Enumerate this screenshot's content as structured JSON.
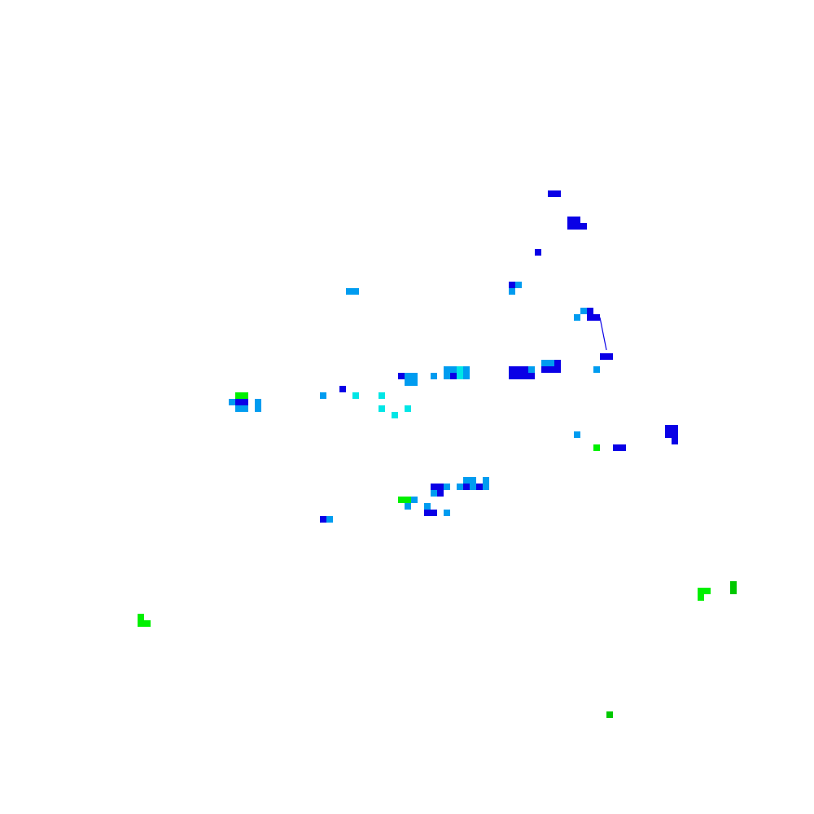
{
  "chart_data": {
    "type": "heatmap",
    "grid_on": false,
    "legend": "none",
    "colors": {
      "D": "#0a00e6",
      "L": "#009cf0",
      "C": "#00e6e6",
      "G": "#00f000",
      "g": "#00c800"
    },
    "cells": [
      [
        84,
        29,
        "D"
      ],
      [
        85,
        29,
        "D"
      ],
      [
        87,
        33,
        "D"
      ],
      [
        88,
        33,
        "D"
      ],
      [
        87,
        34,
        "D"
      ],
      [
        88,
        34,
        "D"
      ],
      [
        89,
        34,
        "D"
      ],
      [
        82,
        38,
        "D"
      ],
      [
        53,
        44,
        "L"
      ],
      [
        54,
        44,
        "L"
      ],
      [
        78,
        43,
        "D"
      ],
      [
        79,
        43,
        "L"
      ],
      [
        78,
        44,
        "L"
      ],
      [
        89,
        47,
        "L"
      ],
      [
        90,
        47,
        "D"
      ],
      [
        88,
        48,
        "L"
      ],
      [
        90,
        48,
        "D"
      ],
      [
        91,
        48,
        "D"
      ],
      [
        92,
        54,
        "D"
      ],
      [
        93,
        54,
        "D"
      ],
      [
        91,
        56,
        "L"
      ],
      [
        61,
        57,
        "D"
      ],
      [
        62,
        57,
        "L"
      ],
      [
        63,
        57,
        "L"
      ],
      [
        62,
        58,
        "L"
      ],
      [
        63,
        58,
        "L"
      ],
      [
        66,
        57,
        "L"
      ],
      [
        68,
        56,
        "L"
      ],
      [
        69,
        56,
        "L"
      ],
      [
        70,
        56,
        "C"
      ],
      [
        71,
        56,
        "L"
      ],
      [
        68,
        57,
        "L"
      ],
      [
        69,
        57,
        "D"
      ],
      [
        70,
        57,
        "C"
      ],
      [
        71,
        57,
        "L"
      ],
      [
        78,
        56,
        "D"
      ],
      [
        79,
        56,
        "D"
      ],
      [
        80,
        56,
        "D"
      ],
      [
        81,
        56,
        "L"
      ],
      [
        78,
        57,
        "D"
      ],
      [
        79,
        57,
        "D"
      ],
      [
        80,
        57,
        "D"
      ],
      [
        81,
        57,
        "D"
      ],
      [
        83,
        55,
        "L"
      ],
      [
        84,
        55,
        "L"
      ],
      [
        85,
        55,
        "D"
      ],
      [
        83,
        56,
        "D"
      ],
      [
        84,
        56,
        "D"
      ],
      [
        85,
        56,
        "D"
      ],
      [
        52,
        59,
        "D"
      ],
      [
        49,
        60,
        "L"
      ],
      [
        54,
        60,
        "C"
      ],
      [
        58,
        60,
        "C"
      ],
      [
        36,
        60,
        "G"
      ],
      [
        37,
        60,
        "G"
      ],
      [
        35,
        61,
        "L"
      ],
      [
        36,
        61,
        "D"
      ],
      [
        37,
        61,
        "D"
      ],
      [
        36,
        62,
        "L"
      ],
      [
        37,
        62,
        "L"
      ],
      [
        39,
        61,
        "L"
      ],
      [
        39,
        62,
        "L"
      ],
      [
        58,
        62,
        "C"
      ],
      [
        62,
        62,
        "C"
      ],
      [
        60,
        63,
        "C"
      ],
      [
        102,
        65,
        "D"
      ],
      [
        103,
        65,
        "D"
      ],
      [
        102,
        66,
        "D"
      ],
      [
        103,
        66,
        "D"
      ],
      [
        103,
        67,
        "D"
      ],
      [
        88,
        66,
        "L"
      ],
      [
        91,
        68,
        "G"
      ],
      [
        94,
        68,
        "D"
      ],
      [
        95,
        68,
        "D"
      ],
      [
        71,
        73,
        "L"
      ],
      [
        72,
        73,
        "L"
      ],
      [
        74,
        73,
        "L"
      ],
      [
        66,
        74,
        "D"
      ],
      [
        67,
        74,
        "D"
      ],
      [
        68,
        74,
        "L"
      ],
      [
        70,
        74,
        "L"
      ],
      [
        71,
        74,
        "D"
      ],
      [
        72,
        74,
        "L"
      ],
      [
        73,
        74,
        "D"
      ],
      [
        74,
        74,
        "L"
      ],
      [
        66,
        75,
        "L"
      ],
      [
        67,
        75,
        "D"
      ],
      [
        61,
        76,
        "G"
      ],
      [
        62,
        76,
        "G"
      ],
      [
        63,
        76,
        "L"
      ],
      [
        62,
        77,
        "L"
      ],
      [
        65,
        77,
        "L"
      ],
      [
        65,
        78,
        "D"
      ],
      [
        66,
        78,
        "D"
      ],
      [
        68,
        78,
        "L"
      ],
      [
        49,
        79,
        "D"
      ],
      [
        50,
        79,
        "L"
      ],
      [
        107,
        90,
        "G"
      ],
      [
        108,
        90,
        "G"
      ],
      [
        107,
        91,
        "G"
      ],
      [
        112,
        89,
        "g"
      ],
      [
        112,
        90,
        "g"
      ],
      [
        21,
        94,
        "G"
      ],
      [
        21,
        95,
        "G"
      ],
      [
        22,
        95,
        "G"
      ],
      [
        93,
        109,
        "g"
      ]
    ],
    "segments": [
      [
        [
          92,
          48.5
        ],
        [
          93,
          53.5
        ],
        "D"
      ]
    ]
  }
}
